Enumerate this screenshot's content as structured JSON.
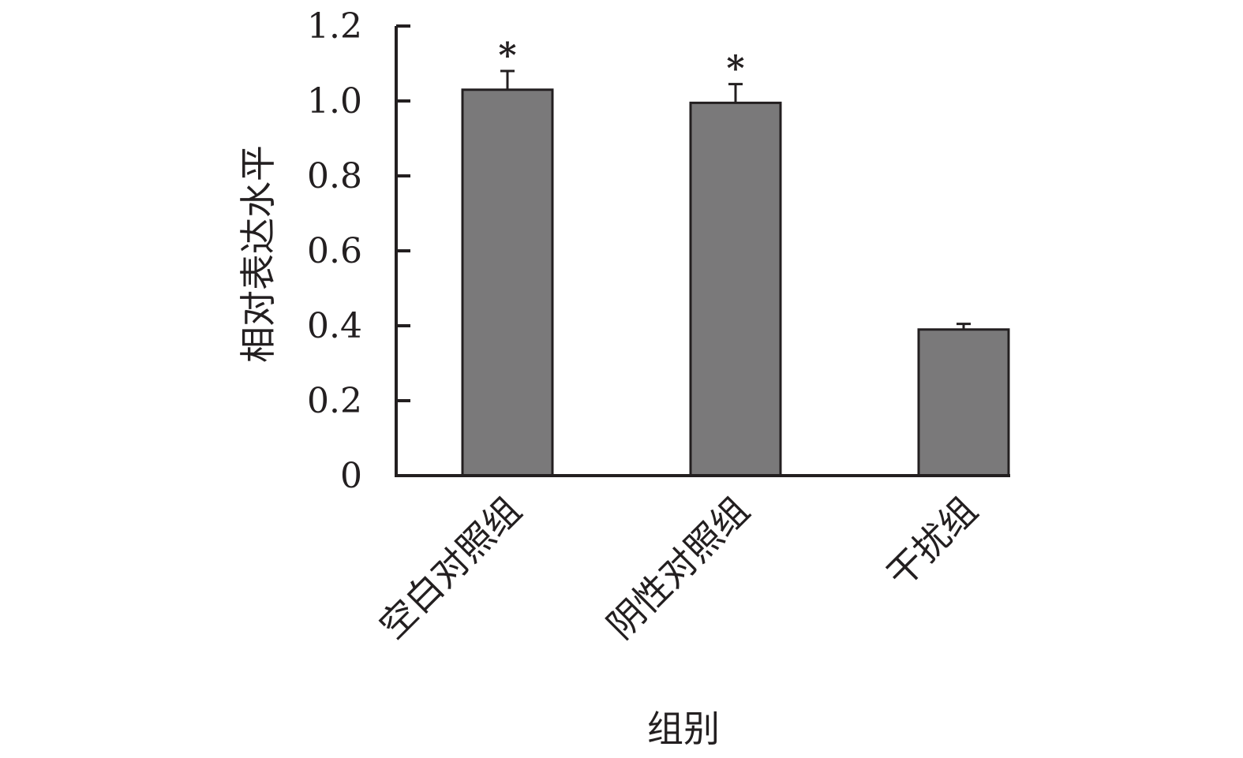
{
  "chart_data": {
    "type": "bar",
    "title": "",
    "xlabel": "组别",
    "ylabel": "相对表达水平",
    "categories": [
      "空白对照组",
      "阴性对照组",
      "干扰组"
    ],
    "values": [
      1.03,
      0.995,
      0.39
    ],
    "errors": [
      0.05,
      0.05,
      0.015
    ],
    "significance": [
      "*",
      "*",
      ""
    ],
    "ylim": [
      0,
      1.2
    ],
    "yticks": [
      0,
      0.2,
      0.4,
      0.6,
      0.8,
      1.0,
      1.2
    ],
    "ytick_labels": [
      "0",
      "0.2",
      "0.4",
      "0.6",
      "0.8",
      "1.0",
      "1.2"
    ],
    "grid": false,
    "legend": "none",
    "colors": {
      "bar": "#7a797a",
      "outline": "#231f20",
      "axis": "#231f20"
    }
  }
}
